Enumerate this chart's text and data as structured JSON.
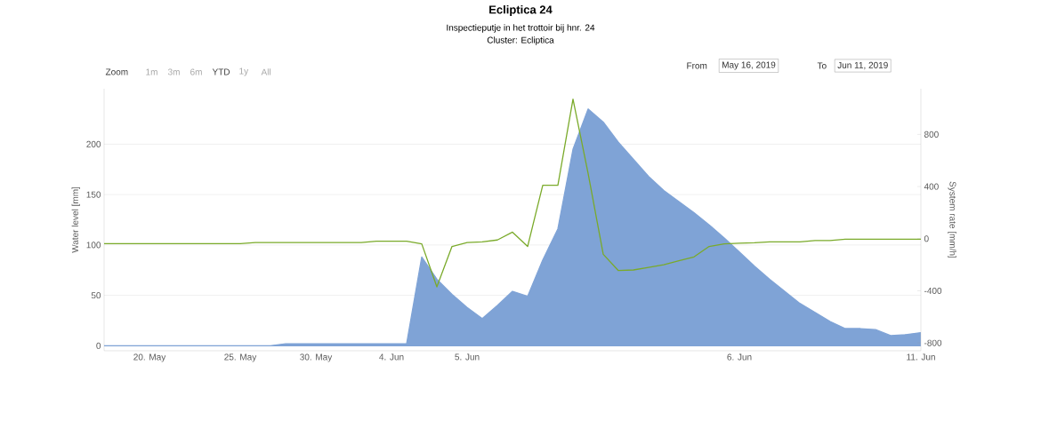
{
  "chart_data": {
    "type": "line",
    "title": "Ecliptica 24",
    "subtitle": "Inspectieputje in het trottoir bij hnr. 24",
    "annotations": [
      "Cluster: Ecliptica",
      "Zoom",
      "1m",
      "3m",
      "6m",
      "YTD",
      "1y",
      "All",
      "From",
      "May 16, 2019",
      "To",
      "Jun 11, 2019"
    ],
    "ylabel": "Water level [mm]",
    "y2label": "System rate [mm/h]",
    "categories": [
      null,
      null,
      null,
      "20. May",
      null,
      null,
      null,
      null,
      null,
      "25. May",
      null,
      null,
      null,
      null,
      "30. May",
      null,
      null,
      null,
      null,
      "4. Jun",
      null,
      null,
      null,
      null,
      "5. Jun",
      null,
      null,
      null,
      null,
      null,
      null,
      null,
      null,
      null,
      null,
      null,
      null,
      null,
      null,
      null,
      null,
      null,
      "6. Jun",
      null,
      null,
      null,
      null,
      null,
      null,
      null,
      null,
      null,
      null,
      null,
      "11. Jun"
    ],
    "series": [
      {
        "type": "area",
        "color": "#7fa3d6",
        "values": [
          0,
          0,
          0,
          0,
          0,
          0,
          0,
          0,
          0,
          0,
          0,
          0,
          2,
          2,
          2,
          2,
          2,
          2,
          2,
          2,
          2,
          88,
          66,
          51,
          38,
          27,
          40,
          54,
          49,
          85,
          116,
          195,
          235,
          222,
          202,
          185,
          168,
          154,
          143,
          132,
          120,
          107,
          93,
          79,
          66,
          54,
          42,
          33,
          24,
          17,
          17,
          16,
          10,
          11,
          13
        ]
      },
      {
        "axis": "y2",
        "color": "#7aaa2a",
        "values": [
          -38,
          -38,
          -38,
          -38,
          -38,
          -38,
          -38,
          -38,
          -38,
          -38,
          -30,
          -30,
          -30,
          -30,
          -30,
          -30,
          -30,
          -30,
          -20,
          -20,
          -20,
          -40,
          -370,
          -60,
          -30,
          -25,
          -10,
          50,
          -60,
          410,
          410,
          1070,
          500,
          -120,
          -245,
          -240,
          -220,
          -200,
          -170,
          -140,
          -60,
          -40,
          -35,
          -32,
          -25,
          -25,
          -25,
          -15,
          -15,
          -4,
          -4,
          -4,
          -4,
          -4,
          -4
        ]
      }
    ],
    "ylim": [
      -5,
      255
    ],
    "yticks": [
      0,
      50,
      100,
      150,
      200
    ],
    "y2lim": [
      -860,
      1150
    ],
    "y2ticks": [
      -800,
      -400,
      0,
      400,
      800
    ],
    "grid": "y",
    "legend": false,
    "marker": "none",
    "line_style": "solid"
  }
}
